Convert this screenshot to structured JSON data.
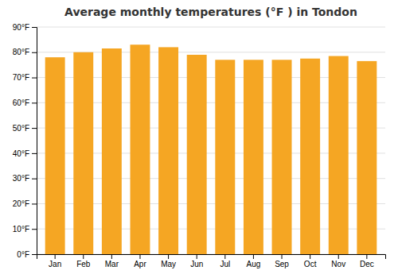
{
  "chart_data": {
    "type": "bar",
    "title": "Average monthly temperatures (°F ) in Tondon",
    "categories": [
      "Jan",
      "Feb",
      "Mar",
      "Apr",
      "May",
      "Jun",
      "Jul",
      "Aug",
      "Sep",
      "Oct",
      "Nov",
      "Dec"
    ],
    "values": [
      78,
      80,
      81.5,
      83,
      82,
      79,
      77,
      77,
      77,
      77.5,
      78.5,
      76.5
    ],
    "color": "#F5A623",
    "ylim": [
      0,
      90
    ],
    "yticks": [
      {
        "value": 0,
        "label": "0°F"
      },
      {
        "value": 10,
        "label": "10°F"
      },
      {
        "value": 20,
        "label": "20°F"
      },
      {
        "value": 30,
        "label": "30°F"
      },
      {
        "value": 40,
        "label": "40°F"
      },
      {
        "value": 50,
        "label": "50°F"
      },
      {
        "value": 60,
        "label": "60°F"
      },
      {
        "value": 70,
        "label": "70°F"
      },
      {
        "value": 80,
        "label": "80°F"
      },
      {
        "value": 90,
        "label": "90°F"
      }
    ],
    "grid": true
  }
}
